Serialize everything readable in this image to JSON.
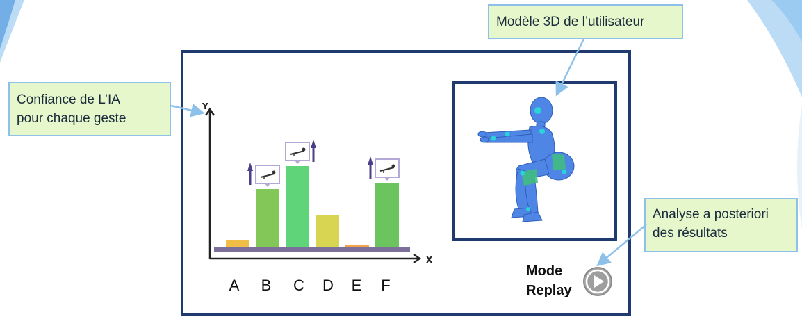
{
  "callouts": {
    "model_3d": "Modèle 3D de l’utilisateur",
    "ia_confidence_line1": "Confiance de L’IA",
    "ia_confidence_line2": "pour chaque geste",
    "replay_line1": "Analyse a posteriori",
    "replay_line2": "des résultats"
  },
  "replay": {
    "line1": "Mode",
    "line2": "Replay",
    "icon": "play-icon"
  },
  "chart_data": {
    "type": "bar",
    "categories": [
      "A",
      "B",
      "C",
      "D",
      "E",
      "F"
    ],
    "values": [
      9,
      83,
      116,
      46,
      2,
      92
    ],
    "ylim": [
      0,
      200
    ],
    "xlabel": "X",
    "ylabel": "Y",
    "colors": [
      "#f0bd47",
      "#84c759",
      "#5fd479",
      "#d7d551",
      "#f2a24a",
      "#6cc45e"
    ],
    "baseline_color": "#7c6f9c",
    "arrow_color": "#4b3f8a",
    "flagged": [
      {
        "category": "B",
        "icon": "pushup-icon",
        "trend": "up"
      },
      {
        "category": "C",
        "icon": "pushup-icon",
        "trend": "up"
      },
      {
        "category": "F",
        "icon": "plank-icon",
        "trend": "up"
      }
    ]
  },
  "colors": {
    "frame": "#1f3a6e",
    "callout_fill": "#e6f7cc",
    "callout_border": "#8dc1ea",
    "model_blue": "#4f86e6",
    "joint": "#28d4d8",
    "muscle": "#3fbf7a"
  }
}
